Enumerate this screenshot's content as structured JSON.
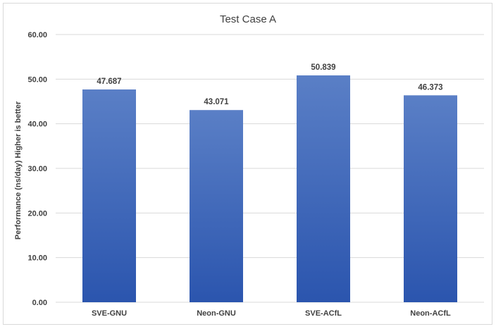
{
  "chart_data": {
    "type": "bar",
    "title": "Test Case A",
    "xlabel": "",
    "ylabel": "Performance (ns/day) Higher is better",
    "categories": [
      "SVE-GNU",
      "Neon-GNU",
      "SVE-ACfL",
      "Neon-ACfL"
    ],
    "values": [
      47.687,
      43.071,
      50.839,
      46.373
    ],
    "data_labels": [
      "47.687",
      "43.071",
      "50.839",
      "46.373"
    ],
    "ylim": [
      0,
      60
    ],
    "yticks": [
      "0.00",
      "10.00",
      "20.00",
      "30.00",
      "40.00",
      "50.00",
      "60.00"
    ],
    "grid": true,
    "legend": "none",
    "colors": {
      "bar_top": "#5a7fc6",
      "bar_bottom": "#2b55ae"
    }
  }
}
